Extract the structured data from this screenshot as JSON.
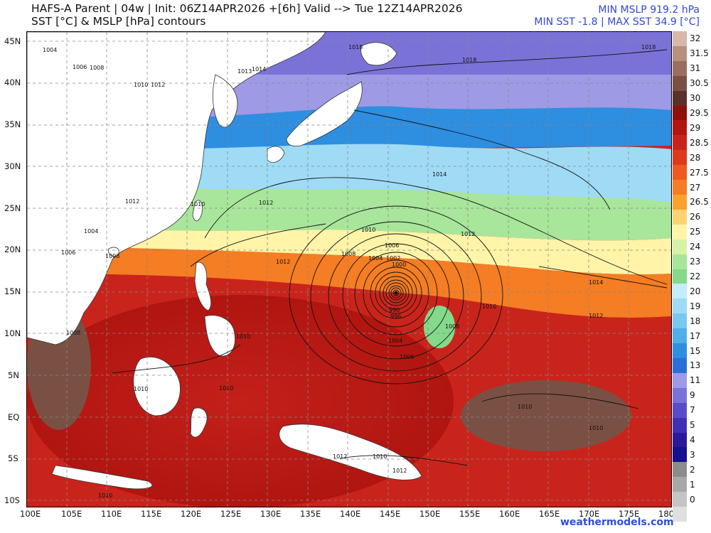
{
  "header": {
    "title_line1": "HAFS-A Parent | 04w | Init: 06Z14APR2026 +[6h] Valid --> Tue 12Z14APR2026",
    "title_line2": "SST [°C] & MSLP [hPa] contours",
    "stat_line1": "MIN MSLP 919.2 hPa",
    "stat_line2": "MIN SST -1.8 | MAX SST 34.9 [°C]",
    "stat_color": "#3344dd"
  },
  "map": {
    "lon_labels": [
      "100E",
      "105E",
      "110E",
      "115E",
      "120E",
      "125E",
      "130E",
      "135E",
      "140E",
      "145E",
      "150E",
      "155E",
      "160E",
      "165E",
      "170E",
      "175E",
      "180"
    ],
    "lat_labels": [
      "45N",
      "40N",
      "35N",
      "30N",
      "25N",
      "20N",
      "15N",
      "10N",
      "5N",
      "EQ",
      "5S",
      "10S"
    ],
    "land_color": "#ffffff",
    "gridline_color": "#888888",
    "storm_center_label": "15N 145E",
    "isobar_labels": [
      {
        "text": "1004"
      },
      {
        "text": "1006"
      },
      {
        "text": "1008"
      },
      {
        "text": "1010"
      },
      {
        "text": "1012"
      },
      {
        "text": "1014"
      },
      {
        "text": "1013"
      },
      {
        "text": "1018"
      },
      {
        "text": "1018"
      },
      {
        "text": "1018"
      },
      {
        "text": "1014"
      },
      {
        "text": "1012"
      },
      {
        "text": "1010"
      },
      {
        "text": "1008"
      },
      {
        "text": "1006"
      },
      {
        "text": "1004"
      },
      {
        "text": "1002"
      },
      {
        "text": "1000"
      },
      {
        "text": "990"
      },
      {
        "text": "996"
      },
      {
        "text": "1004"
      },
      {
        "text": "1006"
      },
      {
        "text": "1008"
      },
      {
        "text": "1010"
      },
      {
        "text": "1012"
      },
      {
        "text": "1014"
      },
      {
        "text": "1012"
      },
      {
        "text": "1010"
      },
      {
        "text": "1010"
      },
      {
        "text": "1010"
      },
      {
        "text": "1012"
      },
      {
        "text": "1010"
      },
      {
        "text": "1010"
      },
      {
        "text": "1010"
      },
      {
        "text": "1012"
      },
      {
        "text": "1010"
      },
      {
        "text": "1008"
      },
      {
        "text": "1006"
      },
      {
        "text": "1004"
      },
      {
        "text": "1012"
      },
      {
        "text": "1010"
      },
      {
        "text": "1008"
      },
      {
        "text": "1012"
      }
    ]
  },
  "colorbar": {
    "labels": [
      "32",
      "31.5",
      "31",
      "30.5",
      "30",
      "29.5",
      "29",
      "28.5",
      "28",
      "27.5",
      "27",
      "26.5",
      "26",
      "25",
      "24",
      "23",
      "22",
      "20",
      "19",
      "18",
      "17",
      "15",
      "13",
      "11",
      "9",
      "7",
      "5",
      "4",
      "3",
      "2",
      "1",
      "0"
    ],
    "colors": [
      "#d7b7aa",
      "#b8907e",
      "#9a6f5f",
      "#7a5044",
      "#5a3128",
      "#8f0f0a",
      "#b01510",
      "#c9241b",
      "#dd3a1c",
      "#ee5a1f",
      "#f57d23",
      "#f9a22d",
      "#fcd273",
      "#fff4a8",
      "#d7f2a6",
      "#a8e69b",
      "#84d98a",
      "#c4ecfb",
      "#9fdbf5",
      "#79c8ef",
      "#52aee9",
      "#2e8ee0",
      "#2a6fd6",
      "#9e9ae6",
      "#7b72d8",
      "#5a4cc8",
      "#4230b3",
      "#2a1a99",
      "#15108c",
      "#8c8c8c",
      "#a8a8a8",
      "#c4c4c4",
      "#e0e0e0"
    ]
  },
  "footer": {
    "credit": "weathermodels.com"
  }
}
